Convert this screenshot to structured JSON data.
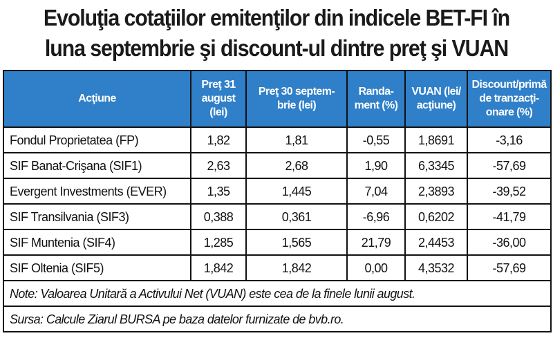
{
  "title": {
    "line1": "Evoluţia cotaţiilor emitenţilor din indicele BET-FI în",
    "line2": "luna septembrie  şi discount-ul dintre preţ şi VUAN"
  },
  "table": {
    "headers": [
      "Acţiune",
      "Preţ 31 august (lei)",
      "Preţ 30 septem-brie  (lei)",
      "Randa-ment (%)",
      "VUAN (lei/ acţiune)",
      "Discount/primă de tranzacţi-onare (%)"
    ],
    "rows": [
      [
        "Fondul Proprietatea (FP)",
        "1,82",
        "1,81",
        "-0,55",
        "1,8691",
        "-3,16"
      ],
      [
        "SIF Banat-Crişana (SIF1)",
        "2,63",
        "2,68",
        "1,90",
        "6,3345",
        "-57,69"
      ],
      [
        "Evergent Investments (EVER)",
        "1,35",
        "1,445",
        "7,04",
        "2,3893",
        "-39,52"
      ],
      [
        "SIF Transilvania (SIF3)",
        "0,388",
        "0,361",
        "-6,96",
        "0,6202",
        "-41,79"
      ],
      [
        "SIF Muntenia (SIF4)",
        "1,285",
        "1,565",
        "21,79",
        "2,4453",
        "-36,00"
      ],
      [
        "SIF Oltenia (SIF5)",
        "1,842",
        "1,842",
        "0,00",
        "4,3532",
        "-57,69"
      ]
    ],
    "note": "Note: Valoarea Unitară a Activului Net (VUAN) este cea de la finele lunii august.",
    "source": "Sursa: Calcule Ziarul BURSA pe baza datelor furnizate de bvb.ro."
  },
  "colors": {
    "header_bg": "#2f7fc9",
    "header_text": "#ffffff",
    "border": "#111111"
  }
}
